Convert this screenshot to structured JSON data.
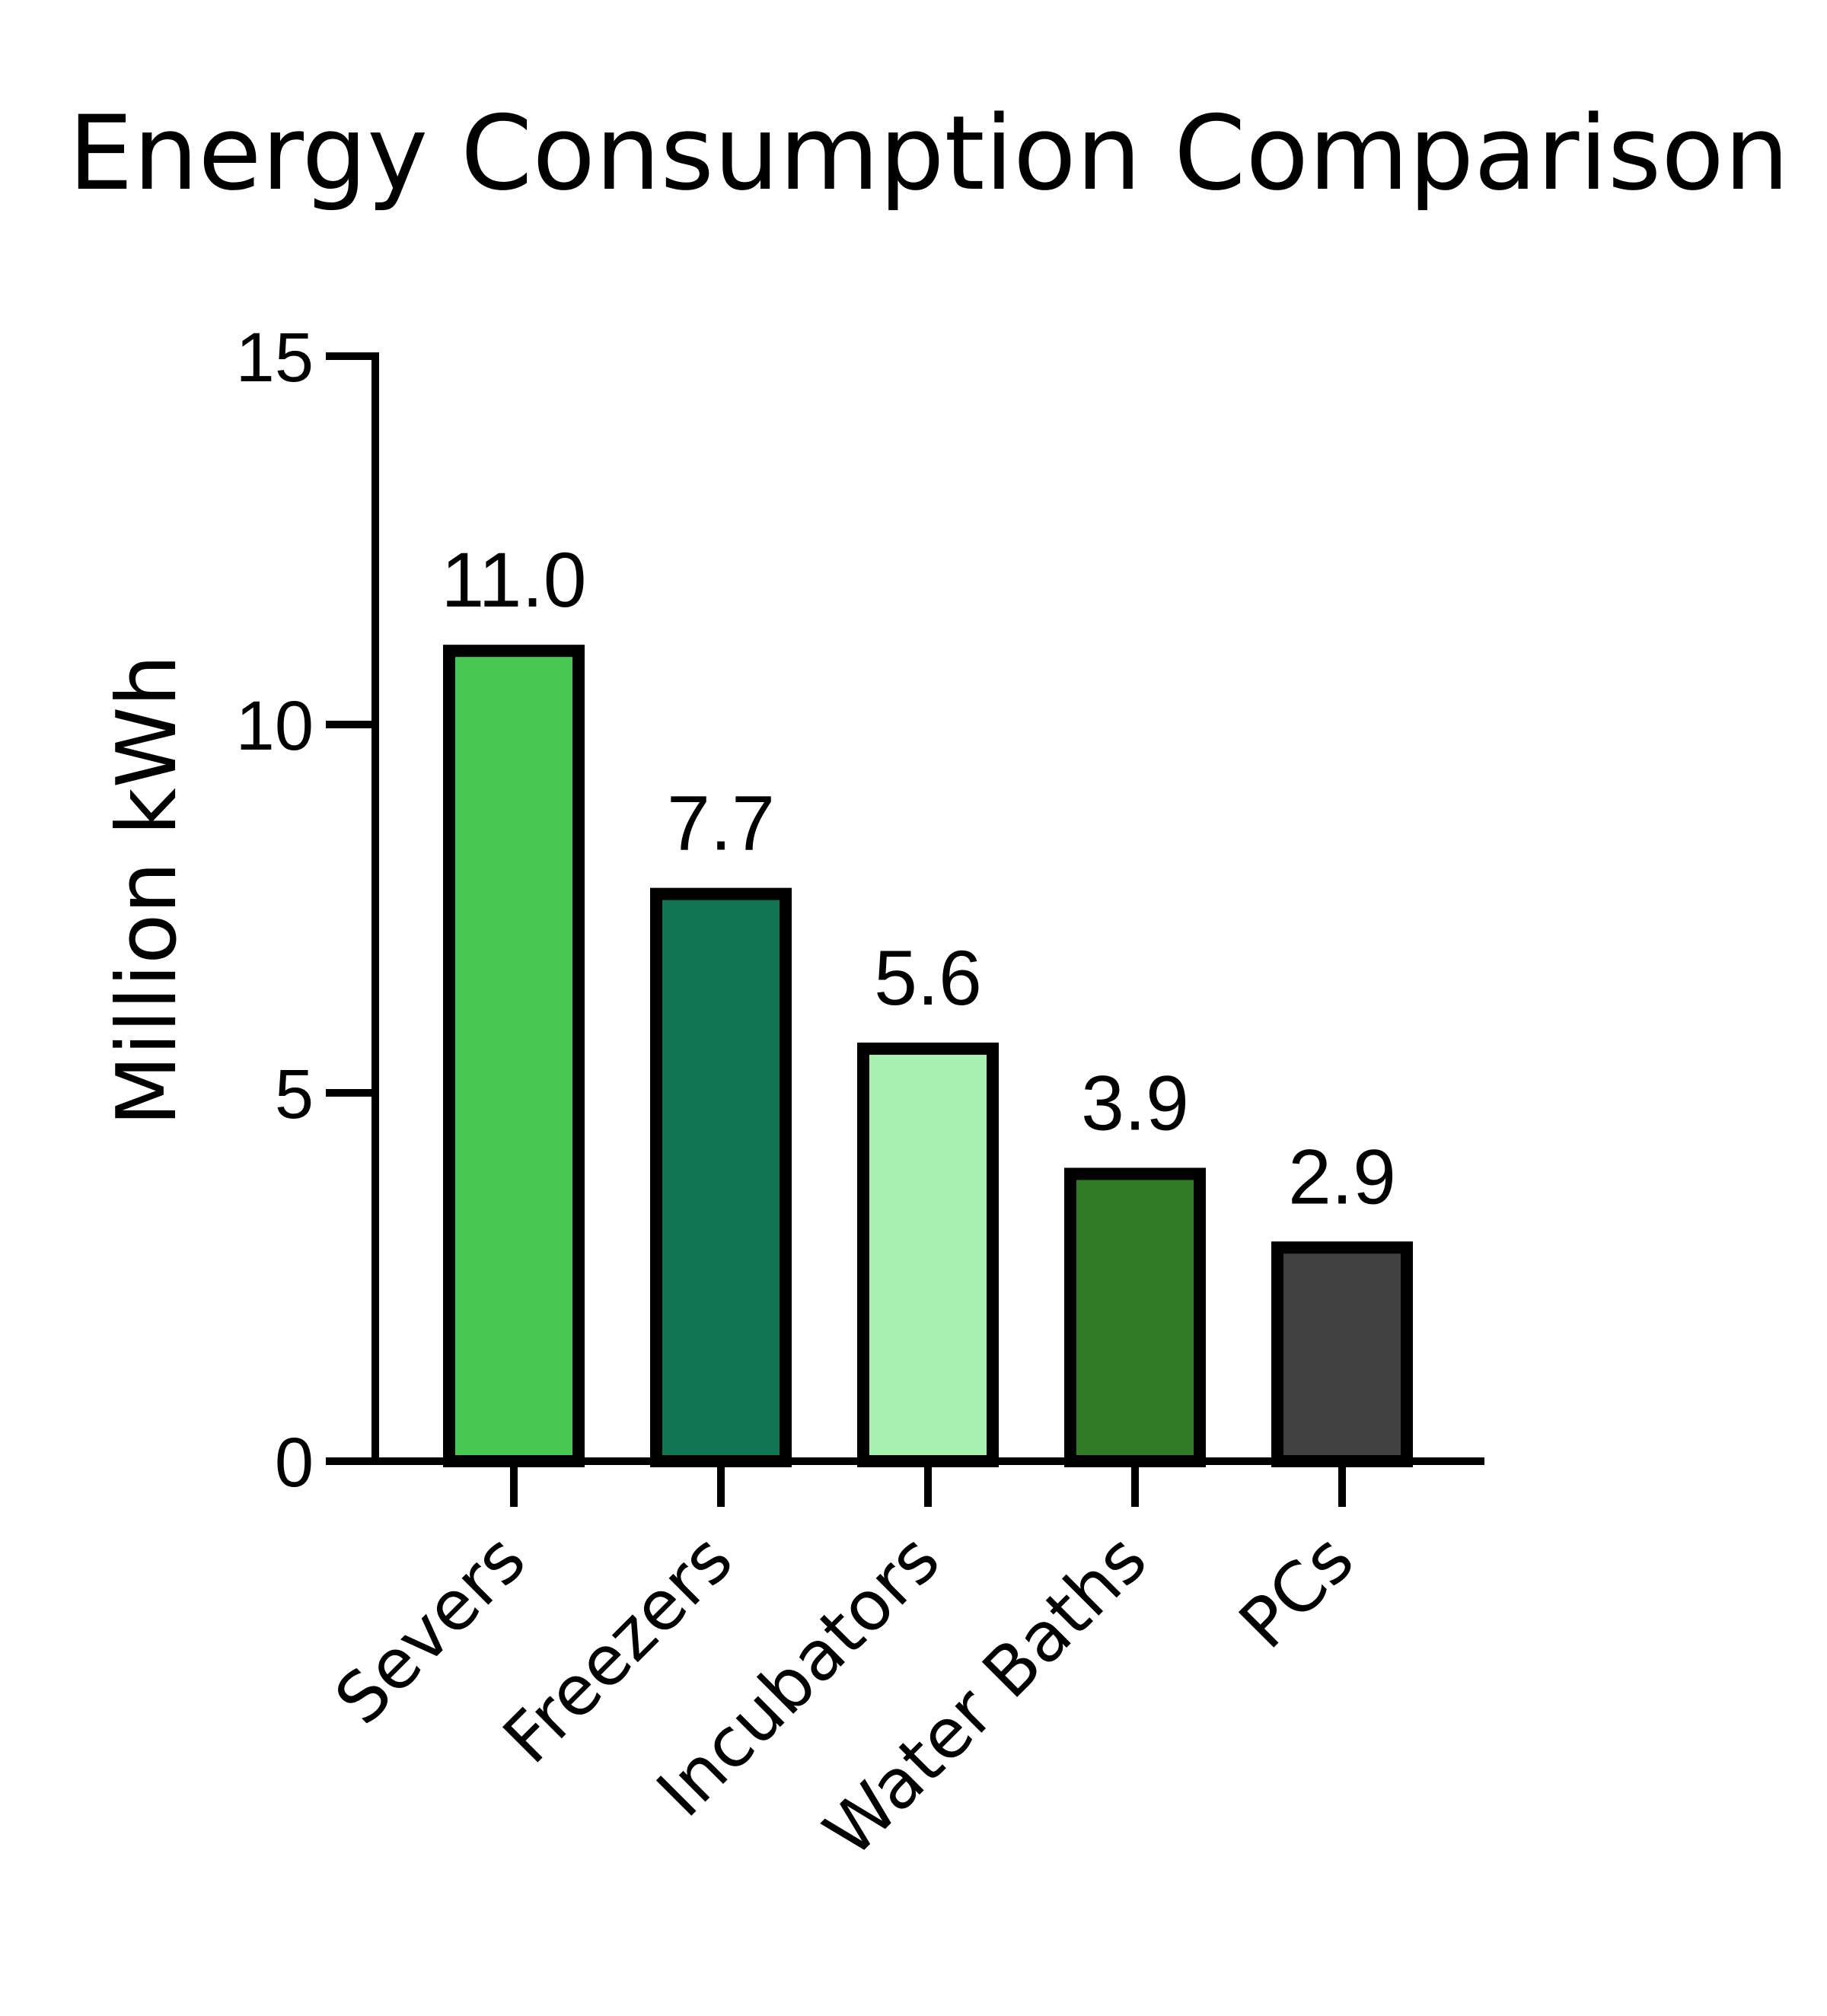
{
  "chart_data": {
    "type": "bar",
    "title": "Energy Consumption Comparison",
    "xlabel": "",
    "ylabel": "Million kWh",
    "ylim": [
      0,
      15
    ],
    "yticks": [
      "0",
      "5",
      "10",
      "15"
    ],
    "grid": false,
    "categories": [
      "Severs",
      "Freezers",
      "Incubators",
      "Water Baths",
      "PCs"
    ],
    "values": [
      11.0,
      7.7,
      5.6,
      3.9,
      2.9
    ],
    "data_labels": [
      "11.0",
      "7.7",
      "5.6",
      "3.9",
      "2.9"
    ],
    "colors": [
      "#46c853",
      "#0f7553",
      "#a6f0b0",
      "#307a25",
      "#404040"
    ],
    "edge_color": "#000000"
  }
}
